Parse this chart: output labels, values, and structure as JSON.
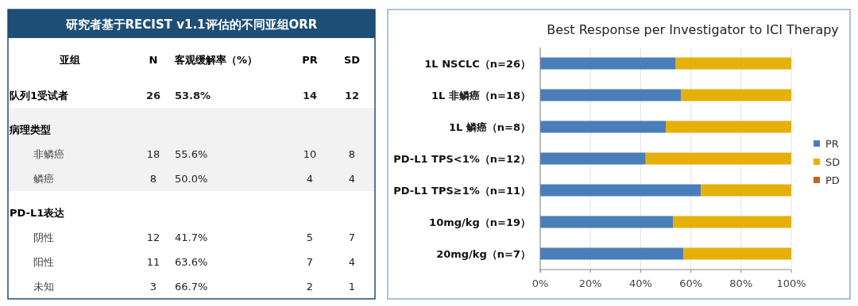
{
  "chart_data": [
    {
      "type": "other",
      "title": "研究者基于RECIST v1.1评估的不同亚组ORR",
      "ylabel": "亚组",
      "categories": [
        "队列1受试者",
        "病理类型",
        "非鳞癌",
        "鳞癌",
        "PD-L1表达",
        "阴性",
        "阳性",
        "未知"
      ],
      "series": [
        {
          "name": "N",
          "color": "#222222",
          "values": [
            26,
            null,
            18,
            8,
            null,
            12,
            11,
            3
          ]
        },
        {
          "name": "客观缓解率（%）",
          "color": "#222222",
          "values": [
            53.8,
            null,
            55.6,
            50.0,
            null,
            41.7,
            63.6,
            66.7
          ],
          "value_labels": [
            "53.8%",
            null,
            "55.6%",
            "50.0%",
            null,
            "41.7%",
            "63.6%",
            "66.7%"
          ]
        },
        {
          "name": "PR",
          "color": "#222222",
          "values": [
            14,
            null,
            10,
            4,
            null,
            5,
            7,
            2
          ]
        },
        {
          "name": "SD",
          "color": "#222222",
          "values": [
            12,
            null,
            8,
            4,
            null,
            7,
            4,
            1
          ]
        }
      ],
      "data_labels": true
    },
    {
      "type": "bar",
      "title": "Best Response per Investigator to ICI Therapy",
      "orientation": "horizontal",
      "stacked": true,
      "categories": [
        "1L NSCLC（n=26）",
        "1L 非鳞癌（n=18）",
        "1L 鳞癌（n=8）",
        "PD-L1 TPS<1%（n=12）",
        "PD-L1 TPS≥1%（n=11）",
        "10mg/kg（n=19）",
        "20mg/kg（n=7）"
      ],
      "series": [
        {
          "name": "PR",
          "color": "#4a7ebb",
          "values": [
            54,
            56,
            50,
            42,
            64,
            53,
            57
          ]
        },
        {
          "name": "SD",
          "color": "#e6b00a",
          "values": [
            46,
            44,
            50,
            58,
            36,
            47,
            43
          ]
        },
        {
          "name": "PD",
          "color": "#c5651e",
          "values": [
            0,
            0,
            0,
            0,
            0,
            0,
            0
          ]
        }
      ],
      "xlim": [
        0,
        100
      ],
      "xticks": [
        {
          "value": 0,
          "label": "0%"
        },
        {
          "value": 20,
          "label": "20%"
        },
        {
          "value": 40,
          "label": "40%"
        },
        {
          "value": 60,
          "label": "60%"
        },
        {
          "value": 80,
          "label": "80%"
        },
        {
          "value": 100,
          "label": "100%"
        }
      ],
      "grid": "x",
      "legend": "right"
    }
  ]
}
